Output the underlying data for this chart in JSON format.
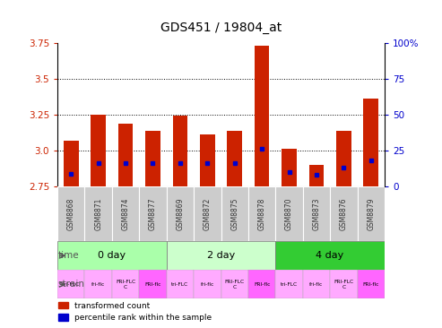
{
  "title": "GDS451 / 19804_at",
  "samples": [
    "GSM8868",
    "GSM8871",
    "GSM8874",
    "GSM8877",
    "GSM8869",
    "GSM8872",
    "GSM8875",
    "GSM8878",
    "GSM8870",
    "GSM8873",
    "GSM8876",
    "GSM8879"
  ],
  "red_values": [
    3.07,
    3.25,
    3.19,
    3.14,
    3.24,
    3.11,
    3.14,
    3.73,
    3.01,
    2.9,
    3.14,
    3.36
  ],
  "blue_values": [
    2.84,
    2.91,
    2.91,
    2.91,
    2.91,
    2.91,
    2.91,
    3.01,
    2.85,
    2.83,
    2.88,
    2.93
  ],
  "ylim": [
    2.75,
    3.75
  ],
  "yticks_left": [
    2.75,
    3.0,
    3.25,
    3.5,
    3.75
  ],
  "yticks_right": [
    0,
    25,
    50,
    75,
    100
  ],
  "ytick_right_labels": [
    "0",
    "25",
    "50",
    "75",
    "100%"
  ],
  "grid_yticks": [
    3.0,
    3.25,
    3.5
  ],
  "time_groups": [
    {
      "label": "0 day",
      "start": 0,
      "end": 4,
      "color": "#aaffaa"
    },
    {
      "label": "2 day",
      "start": 4,
      "end": 8,
      "color": "#ccffcc"
    },
    {
      "label": "4 day",
      "start": 8,
      "end": 12,
      "color": "#33cc33"
    }
  ],
  "strain_labels": [
    "tri-FLC",
    "fri-flc",
    "FRI-FLC\nC",
    "FRI-flc",
    "tri-FLC",
    "fri-flc",
    "FRI-FLC\nC",
    "FRI-flc",
    "tri-FLC",
    "fri-flc",
    "FRI-FLC\nC",
    "FRI-flc"
  ],
  "strain_colors": [
    "#ffaaff",
    "#ffaaff",
    "#ffaaff",
    "#ff66ff",
    "#ffaaff",
    "#ffaaff",
    "#ffaaff",
    "#ff66ff",
    "#ffaaff",
    "#ffaaff",
    "#ffaaff",
    "#ff66ff"
  ],
  "bar_color": "#cc2200",
  "blue_color": "#0000cc",
  "left_tick_color": "#cc2200",
  "right_tick_color": "#0000cc",
  "bar_width": 0.55,
  "base": 2.75,
  "sample_bg": "#cccccc"
}
